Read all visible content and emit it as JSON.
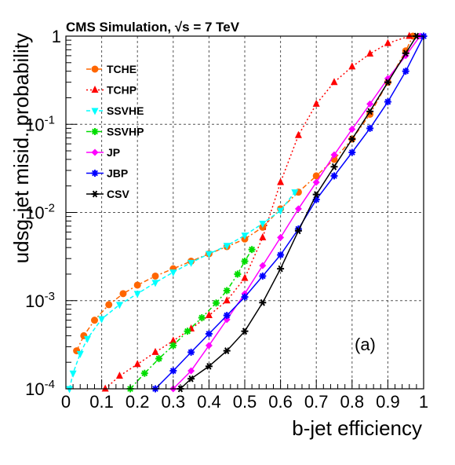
{
  "header": {
    "label": "CMS Simulation, √s = 7 TeV"
  },
  "annotation": "(a)",
  "chart_data": {
    "type": "line",
    "xlabel": "b-jet efficiency",
    "ylabel": "udsg-jet misid. probability",
    "xlim": [
      0,
      1
    ],
    "ylim": [
      0.0001,
      1
    ],
    "yscale": "log",
    "grid": true,
    "legend_position": "top-left",
    "x_ticks": [
      "0",
      "0.1",
      "0.2",
      "0.3",
      "0.4",
      "0.5",
      "0.6",
      "0.7",
      "0.8",
      "0.9",
      "1"
    ],
    "series": [
      {
        "name": "TCHE",
        "color": "#ff6600",
        "marker": "circle",
        "line": "dashdot",
        "points": [
          [
            0.03,
            0.00027
          ],
          [
            0.05,
            0.0004
          ],
          [
            0.08,
            0.0006
          ],
          [
            0.12,
            0.0009
          ],
          [
            0.16,
            0.0012
          ],
          [
            0.2,
            0.0015
          ],
          [
            0.25,
            0.0019
          ],
          [
            0.3,
            0.0023
          ],
          [
            0.35,
            0.0028
          ],
          [
            0.4,
            0.0034
          ],
          [
            0.45,
            0.0041
          ],
          [
            0.5,
            0.005
          ],
          [
            0.55,
            0.0068
          ],
          [
            0.6,
            0.011
          ],
          [
            0.65,
            0.017
          ],
          [
            0.7,
            0.026
          ],
          [
            0.75,
            0.04
          ],
          [
            0.8,
            0.068
          ],
          [
            0.85,
            0.13
          ],
          [
            0.9,
            0.3
          ],
          [
            0.95,
            0.68
          ],
          [
            0.97,
            1.0
          ]
        ]
      },
      {
        "name": "TCHP",
        "color": "#ff0000",
        "marker": "triangle-up",
        "line": "dotted",
        "points": [
          [
            0.11,
            0.0001
          ],
          [
            0.15,
            0.00014
          ],
          [
            0.2,
            0.00019
          ],
          [
            0.25,
            0.00026
          ],
          [
            0.3,
            0.00035
          ],
          [
            0.35,
            0.00048
          ],
          [
            0.4,
            0.00068
          ],
          [
            0.45,
            0.001
          ],
          [
            0.5,
            0.0018
          ],
          [
            0.55,
            0.0052
          ],
          [
            0.6,
            0.022
          ],
          [
            0.65,
            0.075
          ],
          [
            0.7,
            0.17
          ],
          [
            0.75,
            0.3
          ],
          [
            0.8,
            0.45
          ],
          [
            0.85,
            0.63
          ],
          [
            0.9,
            0.83
          ],
          [
            0.96,
            1.0
          ]
        ]
      },
      {
        "name": "SSVHE",
        "color": "#00ffff",
        "marker": "triangle-down",
        "line": "dashed",
        "points": [
          [
            0.01,
            0.0001
          ],
          [
            0.02,
            0.00015
          ],
          [
            0.04,
            0.00025
          ],
          [
            0.06,
            0.00037
          ],
          [
            0.1,
            0.00062
          ],
          [
            0.15,
            0.0009
          ],
          [
            0.2,
            0.0012
          ],
          [
            0.25,
            0.0016
          ],
          [
            0.3,
            0.0021
          ],
          [
            0.35,
            0.0027
          ],
          [
            0.4,
            0.0034
          ],
          [
            0.45,
            0.0042
          ],
          [
            0.5,
            0.0055
          ],
          [
            0.55,
            0.0075
          ],
          [
            0.6,
            0.0105
          ],
          [
            0.64,
            0.017
          ]
        ]
      },
      {
        "name": "SSVHP",
        "color": "#00dd00",
        "marker": "star",
        "line": "dashdot",
        "points": [
          [
            0.18,
            0.0001
          ],
          [
            0.22,
            0.00015
          ],
          [
            0.26,
            0.00022
          ],
          [
            0.3,
            0.00031
          ],
          [
            0.34,
            0.00045
          ],
          [
            0.38,
            0.00064
          ],
          [
            0.42,
            0.00094
          ],
          [
            0.45,
            0.0013
          ],
          [
            0.48,
            0.002
          ],
          [
            0.5,
            0.0028
          ],
          [
            0.52,
            0.0038
          ]
        ]
      },
      {
        "name": "JP",
        "color": "#ff00ff",
        "marker": "diamond",
        "line": "solid",
        "points": [
          [
            0.3,
            0.0001
          ],
          [
            0.35,
            0.00016
          ],
          [
            0.4,
            0.00031
          ],
          [
            0.45,
            0.00061
          ],
          [
            0.5,
            0.0012
          ],
          [
            0.55,
            0.0025
          ],
          [
            0.6,
            0.0052
          ],
          [
            0.65,
            0.011
          ],
          [
            0.7,
            0.022
          ],
          [
            0.75,
            0.045
          ],
          [
            0.8,
            0.088
          ],
          [
            0.85,
            0.17
          ],
          [
            0.9,
            0.33
          ],
          [
            0.95,
            0.6
          ],
          [
            0.99,
            1.0
          ]
        ]
      },
      {
        "name": "JBP",
        "color": "#0000ff",
        "marker": "star",
        "line": "solid",
        "points": [
          [
            0.25,
            0.0001
          ],
          [
            0.3,
            0.00016
          ],
          [
            0.35,
            0.00026
          ],
          [
            0.4,
            0.00042
          ],
          [
            0.45,
            0.00068
          ],
          [
            0.5,
            0.0011
          ],
          [
            0.55,
            0.0019
          ],
          [
            0.6,
            0.0033
          ],
          [
            0.65,
            0.0065
          ],
          [
            0.7,
            0.014
          ],
          [
            0.75,
            0.026
          ],
          [
            0.8,
            0.048
          ],
          [
            0.85,
            0.09
          ],
          [
            0.9,
            0.18
          ],
          [
            0.95,
            0.4
          ],
          [
            1.0,
            1.0
          ]
        ]
      },
      {
        "name": "CSV",
        "color": "#000000",
        "marker": "asterisk",
        "line": "solid",
        "points": [
          [
            0.32,
            0.0001
          ],
          [
            0.35,
            0.00013
          ],
          [
            0.4,
            0.00018
          ],
          [
            0.45,
            0.00027
          ],
          [
            0.5,
            0.00045
          ],
          [
            0.55,
            0.00095
          ],
          [
            0.6,
            0.0023
          ],
          [
            0.65,
            0.0062
          ],
          [
            0.7,
            0.016
          ],
          [
            0.75,
            0.033
          ],
          [
            0.8,
            0.068
          ],
          [
            0.85,
            0.14
          ],
          [
            0.9,
            0.3
          ],
          [
            0.95,
            0.64
          ],
          [
            0.98,
            1.0
          ]
        ]
      }
    ]
  }
}
